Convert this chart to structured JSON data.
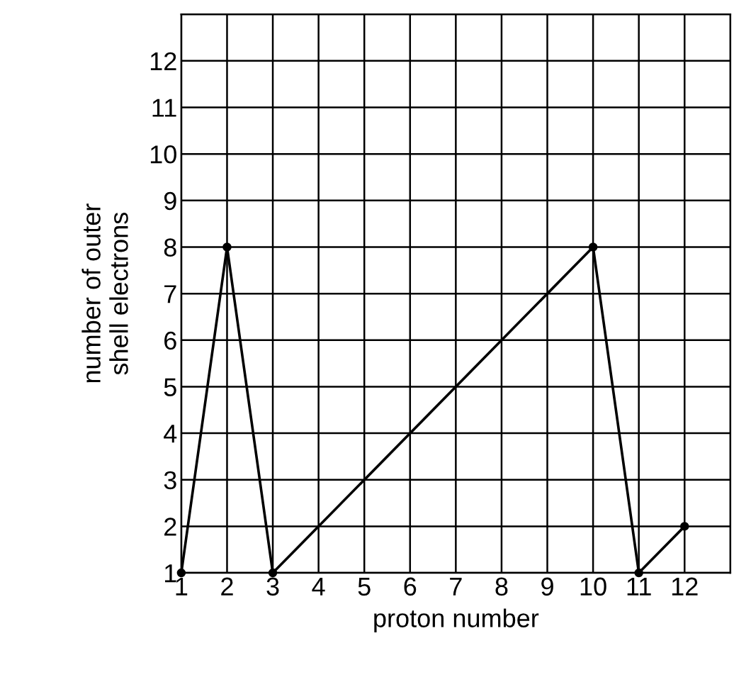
{
  "chart_data": {
    "type": "line",
    "xlabel": "proton number",
    "ylabel": "number of outer\nshell electrons",
    "x": [
      1,
      2,
      3,
      10,
      11,
      12
    ],
    "series": [
      {
        "color": "#000000",
        "values": [
          1,
          8,
          1,
          8,
          1,
          2
        ]
      }
    ],
    "xlim": [
      1,
      13
    ],
    "ylim": [
      1,
      13
    ],
    "xticks": [
      1,
      2,
      3,
      4,
      5,
      6,
      7,
      8,
      9,
      10,
      11,
      12
    ],
    "yticks": [
      1,
      2,
      3,
      4,
      5,
      6,
      7,
      8,
      9,
      10,
      11,
      12
    ],
    "grid": true,
    "marker": "circle",
    "line_style": "solid"
  }
}
